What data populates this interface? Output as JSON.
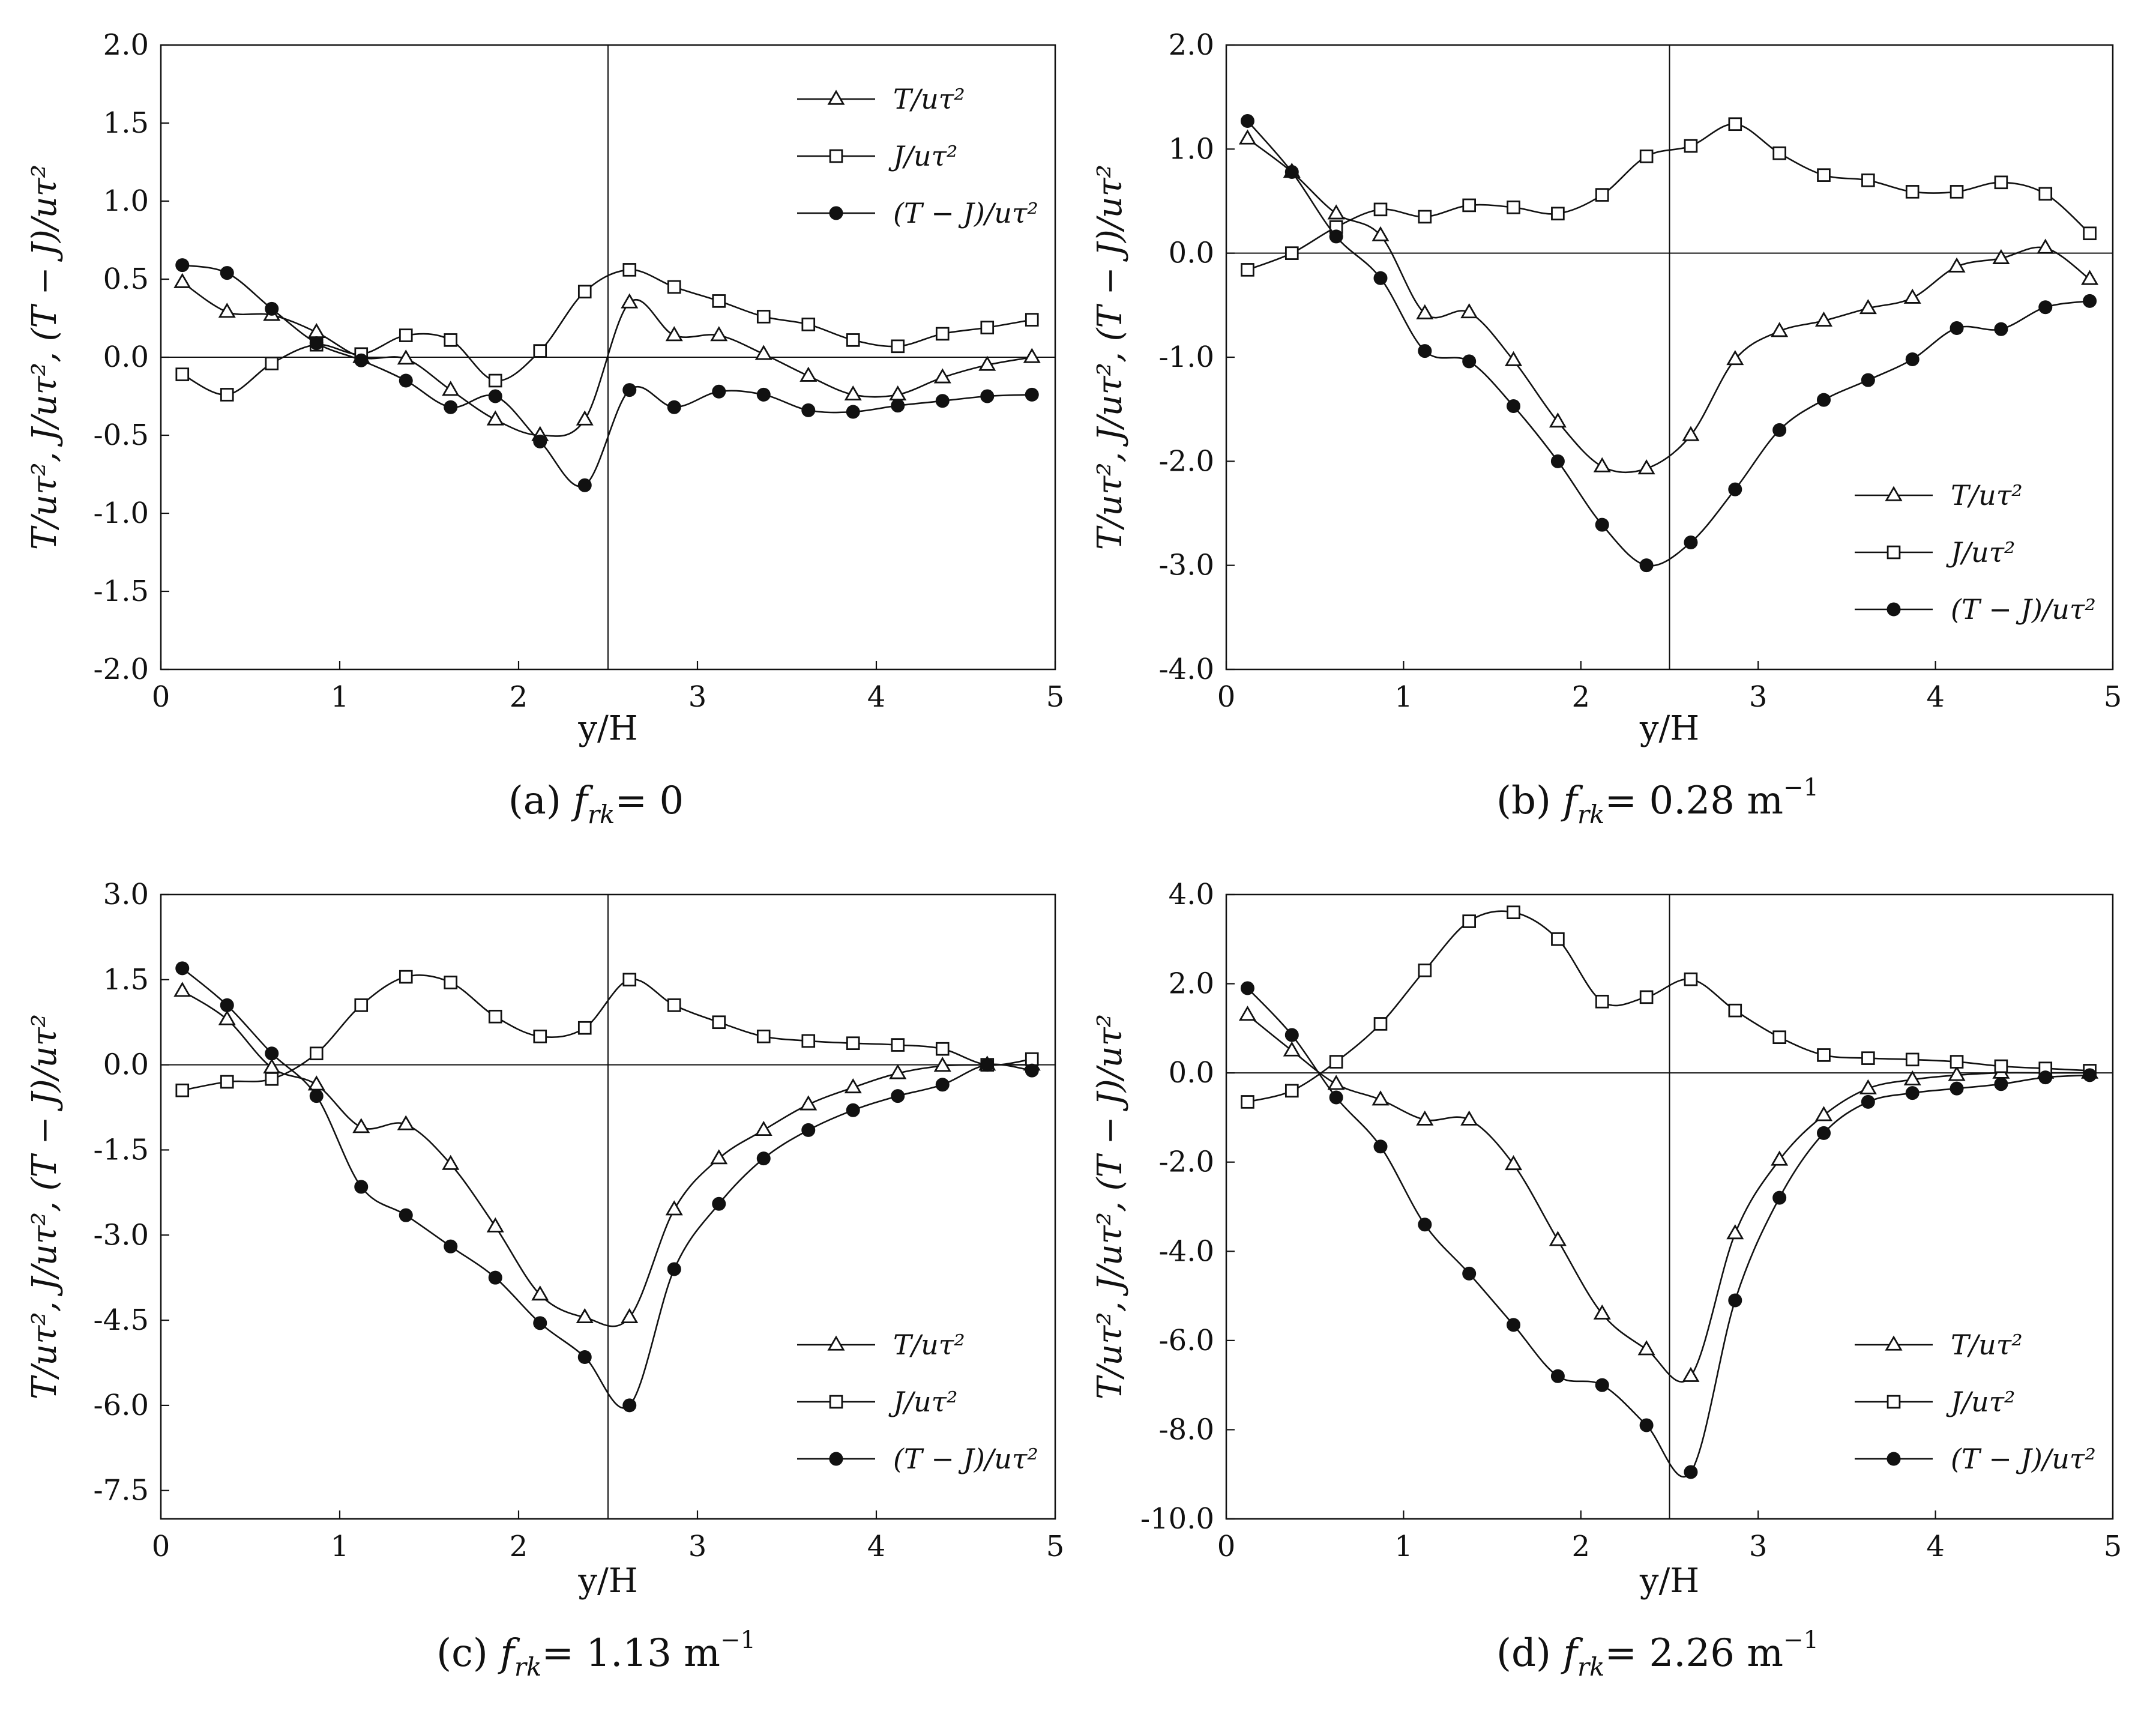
{
  "figure": {
    "chart_data": [
      {
        "type": "line",
        "panel": "a",
        "caption_prefix": "(a) ",
        "caption_var": "f",
        "caption_sub": "rk",
        "caption_value": "= 0",
        "caption_unit": "",
        "caption_exp": "",
        "xlabel": "y/H",
        "ylabel": "T/uτ², J/uτ², (T − J)/uτ²",
        "xlim": [
          0,
          5
        ],
        "ylim": [
          -2.0,
          2.0
        ],
        "xticks": [
          0,
          1,
          2,
          3,
          4,
          5
        ],
        "xtick_labels": [
          "0",
          "1",
          "2",
          "3",
          "4",
          "5"
        ],
        "yticks": [
          -2.0,
          -1.5,
          -1.0,
          -0.5,
          0.0,
          0.5,
          1.0,
          1.5,
          2.0
        ],
        "ytick_labels": [
          "-2.0",
          "-1.5",
          "-1.0",
          "-0.5",
          "0.0",
          "0.5",
          "1.0",
          "1.5",
          "2.0"
        ],
        "vline_x": 2.5,
        "hline_y": 0,
        "legend_position": "top-right",
        "x": [
          0.12,
          0.37,
          0.62,
          0.87,
          1.12,
          1.37,
          1.62,
          1.87,
          2.12,
          2.37,
          2.62,
          2.87,
          3.12,
          3.37,
          3.62,
          3.87,
          4.12,
          4.37,
          4.62,
          4.87
        ],
        "series": [
          {
            "name": "T/uτ²",
            "marker": "triangle",
            "values": [
              0.48,
              0.29,
              0.27,
              0.16,
              0.0,
              -0.01,
              -0.21,
              -0.4,
              -0.5,
              -0.4,
              0.35,
              0.14,
              0.14,
              0.02,
              -0.12,
              -0.24,
              -0.24,
              -0.13,
              -0.05,
              0.0
            ]
          },
          {
            "name": "J/uτ²",
            "marker": "square",
            "values": [
              -0.11,
              -0.24,
              -0.04,
              0.08,
              0.02,
              0.14,
              0.11,
              -0.15,
              0.04,
              0.42,
              0.56,
              0.45,
              0.36,
              0.26,
              0.21,
              0.11,
              0.07,
              0.15,
              0.19,
              0.24
            ]
          },
          {
            "name": "(T − J)/uτ²",
            "marker": "circle",
            "values": [
              0.59,
              0.54,
              0.31,
              0.09,
              -0.02,
              -0.15,
              -0.32,
              -0.25,
              -0.54,
              -0.82,
              -0.21,
              -0.32,
              -0.22,
              -0.24,
              -0.34,
              -0.35,
              -0.31,
              -0.28,
              -0.25,
              -0.24
            ]
          }
        ]
      },
      {
        "type": "line",
        "panel": "b",
        "caption_prefix": "(b) ",
        "caption_var": "f",
        "caption_sub": "rk",
        "caption_value": "= 0.28 m",
        "caption_unit": "m",
        "caption_exp": "−1",
        "xlabel": "y/H",
        "ylabel": "T/uτ², J/uτ², (T − J)/uτ²",
        "xlim": [
          0,
          5
        ],
        "ylim": [
          -4.0,
          2.0
        ],
        "xticks": [
          0,
          1,
          2,
          3,
          4,
          5
        ],
        "xtick_labels": [
          "0",
          "1",
          "2",
          "3",
          "4",
          "5"
        ],
        "yticks": [
          -4.0,
          -3.0,
          -2.0,
          -1.0,
          0.0,
          1.0,
          2.0
        ],
        "ytick_labels": [
          "-4.0",
          "-3.0",
          "-2.0",
          "-1.0",
          "0.0",
          "1.0",
          "2.0"
        ],
        "vline_x": 2.5,
        "hline_y": 0,
        "legend_position": "bottom-right",
        "x": [
          0.12,
          0.37,
          0.62,
          0.87,
          1.12,
          1.37,
          1.62,
          1.87,
          2.12,
          2.37,
          2.62,
          2.87,
          3.12,
          3.37,
          3.62,
          3.87,
          4.12,
          4.37,
          4.62,
          4.87
        ],
        "series": [
          {
            "name": "T/uτ²",
            "marker": "triangle",
            "values": [
              1.1,
              0.78,
              0.38,
              0.17,
              -0.58,
              -0.57,
              -1.03,
              -1.62,
              -2.05,
              -2.07,
              -1.75,
              -1.02,
              -0.75,
              -0.65,
              -0.53,
              -0.43,
              -0.13,
              -0.05,
              0.05,
              -0.25
            ]
          },
          {
            "name": "J/uτ²",
            "marker": "square",
            "values": [
              -0.16,
              0.0,
              0.25,
              0.42,
              0.35,
              0.46,
              0.44,
              0.38,
              0.56,
              0.93,
              1.03,
              1.24,
              0.96,
              0.75,
              0.7,
              0.59,
              0.59,
              0.68,
              0.57,
              0.19
            ]
          },
          {
            "name": "(T − J)/uτ²",
            "marker": "circle",
            "values": [
              1.27,
              0.78,
              0.16,
              -0.24,
              -0.94,
              -1.04,
              -1.47,
              -2.0,
              -2.61,
              -3.0,
              -2.78,
              -2.27,
              -1.7,
              -1.41,
              -1.22,
              -1.02,
              -0.72,
              -0.73,
              -0.52,
              -0.46
            ]
          }
        ]
      },
      {
        "type": "line",
        "panel": "c",
        "caption_prefix": "(c) ",
        "caption_var": "f",
        "caption_sub": "rk",
        "caption_value": "= 1.13 m",
        "caption_unit": "m",
        "caption_exp": "−1",
        "xlabel": "y/H",
        "ylabel": "T/uτ², J/uτ², (T − J)/uτ²",
        "xlim": [
          0,
          5
        ],
        "ylim": [
          -8.0,
          3.0
        ],
        "xticks": [
          0,
          1,
          2,
          3,
          4,
          5
        ],
        "xtick_labels": [
          "0",
          "1",
          "2",
          "3",
          "4",
          "5"
        ],
        "yticks": [
          -7.5,
          -6.0,
          -4.5,
          -3.0,
          -1.5,
          0.0,
          1.5,
          3.0
        ],
        "ytick_labels": [
          "-7.5",
          "-6.0",
          "-4.5",
          "-3.0",
          "-1.5",
          "0.0",
          "1.5",
          "3.0"
        ],
        "vline_x": 2.5,
        "hline_y": 0,
        "legend_position": "bottom-right",
        "x": [
          0.12,
          0.37,
          0.62,
          0.87,
          1.12,
          1.37,
          1.62,
          1.87,
          2.12,
          2.37,
          2.62,
          2.87,
          3.12,
          3.37,
          3.62,
          3.87,
          4.12,
          4.37,
          4.62,
          4.87
        ],
        "series": [
          {
            "name": "T/uτ²",
            "marker": "triangle",
            "values": [
              1.3,
              0.8,
              -0.05,
              -0.35,
              -1.1,
              -1.05,
              -1.75,
              -2.85,
              -4.05,
              -4.45,
              -4.45,
              -2.55,
              -1.65,
              -1.15,
              -0.7,
              -0.4,
              -0.15,
              -0.02,
              0.0,
              0.0
            ]
          },
          {
            "name": "J/uτ²",
            "marker": "square",
            "values": [
              -0.45,
              -0.3,
              -0.25,
              0.2,
              1.05,
              1.55,
              1.45,
              0.85,
              0.5,
              0.65,
              1.5,
              1.05,
              0.75,
              0.5,
              0.42,
              0.38,
              0.35,
              0.28,
              0.0,
              0.1
            ]
          },
          {
            "name": "(T − J)/uτ²",
            "marker": "circle",
            "values": [
              1.7,
              1.05,
              0.2,
              -0.55,
              -2.15,
              -2.65,
              -3.2,
              -3.75,
              -4.55,
              -5.15,
              -6.0,
              -3.6,
              -2.45,
              -1.65,
              -1.15,
              -0.8,
              -0.55,
              -0.35,
              0.0,
              -0.1
            ]
          }
        ]
      },
      {
        "type": "line",
        "panel": "d",
        "caption_prefix": "(d) ",
        "caption_var": "f",
        "caption_sub": "rk",
        "caption_value": "= 2.26 m",
        "caption_unit": "m",
        "caption_exp": "−1",
        "xlabel": "y/H",
        "ylabel": "T/uτ², J/uτ², (T − J)/uτ²",
        "xlim": [
          0,
          5
        ],
        "ylim": [
          -10.0,
          4.0
        ],
        "xticks": [
          0,
          1,
          2,
          3,
          4,
          5
        ],
        "xtick_labels": [
          "0",
          "1",
          "2",
          "3",
          "4",
          "5"
        ],
        "yticks": [
          -10.0,
          -8.0,
          -6.0,
          -4.0,
          -2.0,
          0.0,
          2.0,
          4.0
        ],
        "ytick_labels": [
          "-10.0",
          "-8.0",
          "-6.0",
          "-4.0",
          "-2.0",
          "0.0",
          "2.0",
          "4.0"
        ],
        "vline_x": 2.5,
        "hline_y": 0,
        "legend_position": "bottom-right",
        "x": [
          0.12,
          0.37,
          0.62,
          0.87,
          1.12,
          1.37,
          1.62,
          1.87,
          2.12,
          2.37,
          2.62,
          2.87,
          3.12,
          3.37,
          3.62,
          3.87,
          4.12,
          4.37,
          4.62,
          4.87
        ],
        "series": [
          {
            "name": "T/uτ²",
            "marker": "triangle",
            "values": [
              1.3,
              0.5,
              -0.25,
              -0.6,
              -1.05,
              -1.05,
              -2.05,
              -3.75,
              -5.4,
              -6.2,
              -6.8,
              -3.6,
              -1.95,
              -0.95,
              -0.35,
              -0.15,
              -0.05,
              0.0,
              0.0,
              0.0
            ]
          },
          {
            "name": "J/uτ²",
            "marker": "square",
            "values": [
              -0.65,
              -0.4,
              0.25,
              1.1,
              2.3,
              3.4,
              3.6,
              3.0,
              1.6,
              1.7,
              2.1,
              1.4,
              0.8,
              0.4,
              0.33,
              0.3,
              0.25,
              0.15,
              0.1,
              0.05
            ]
          },
          {
            "name": "(T − J)/uτ²",
            "marker": "circle",
            "values": [
              1.9,
              0.85,
              -0.55,
              -1.65,
              -3.4,
              -4.5,
              -5.65,
              -6.8,
              -7.0,
              -7.9,
              -8.95,
              -5.1,
              -2.8,
              -1.35,
              -0.65,
              -0.45,
              -0.35,
              -0.25,
              -0.1,
              -0.05
            ]
          }
        ]
      }
    ]
  }
}
